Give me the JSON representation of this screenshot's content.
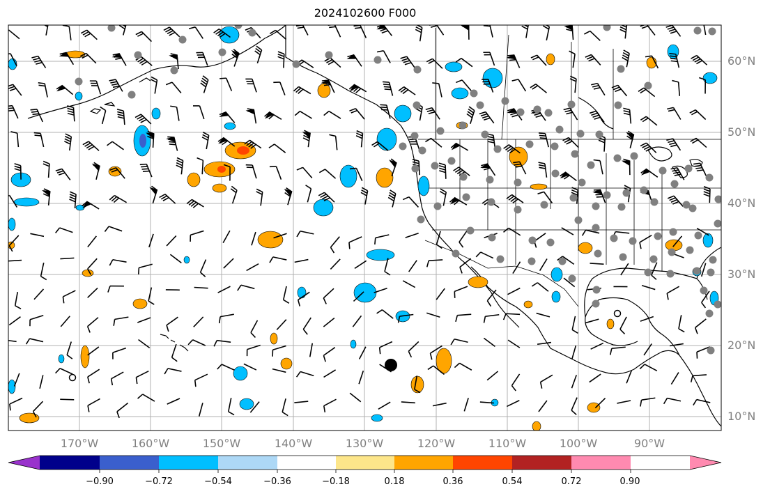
{
  "title": "2024102600 F000",
  "map": {
    "longitude_labels": [
      "170°W",
      "160°W",
      "150°W",
      "140°W",
      "130°W",
      "120°W",
      "110°W",
      "100°W",
      "90°W"
    ],
    "latitude_labels": [
      "60°N",
      "50°N",
      "40°N",
      "30°N",
      "20°N",
      "10°N"
    ],
    "gridline_color": "#b0b0b0",
    "station_marker_color": "#808080",
    "highlight_marker_color": "#000000"
  },
  "colorbar": {
    "tick_labels": [
      "−0.90",
      "−0.72",
      "−0.54",
      "−0.36",
      "−0.18",
      "0.18",
      "0.36",
      "0.54",
      "0.72",
      "0.90"
    ],
    "colors": [
      "#9932cc",
      "#00008b",
      "#3a5fcd",
      "#00bfff",
      "#add8f6",
      "#ffffff",
      "#fde68a",
      "#ffa500",
      "#ff4500",
      "#b22222",
      "#ff8ab0"
    ],
    "extend": "both"
  }
}
